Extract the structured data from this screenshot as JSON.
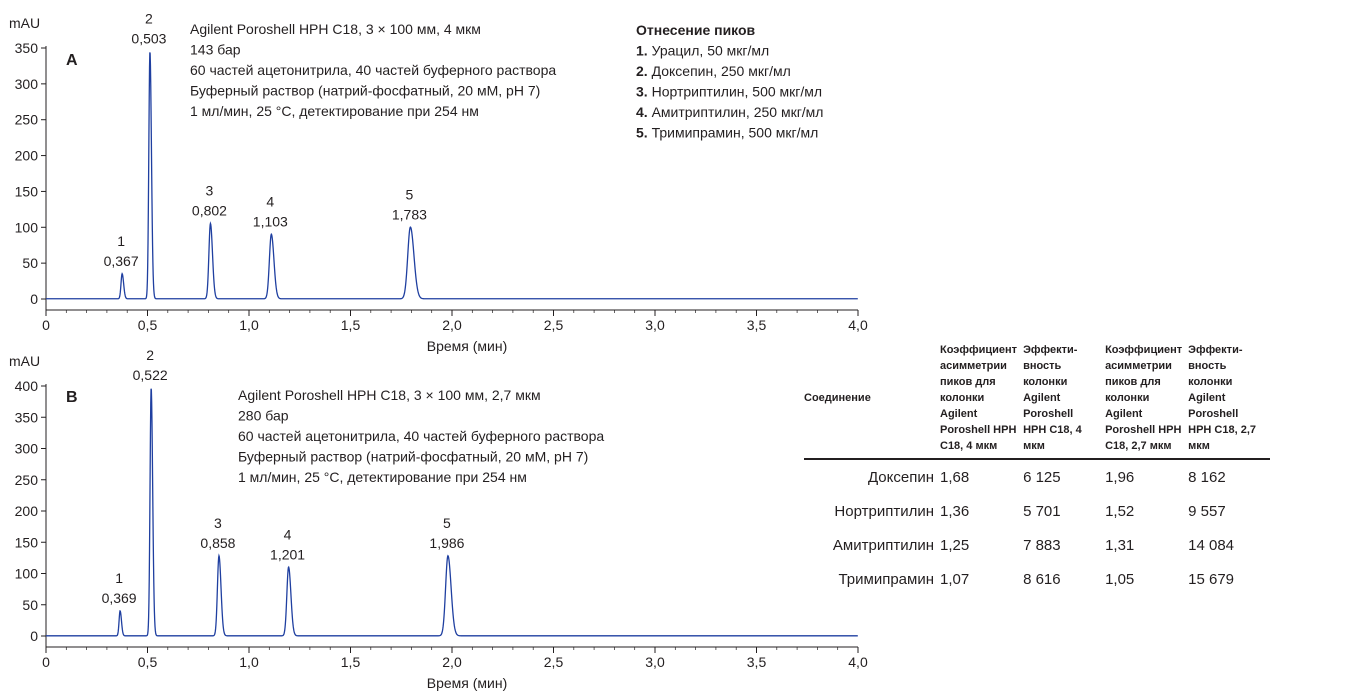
{
  "chart_data": [
    {
      "type": "line",
      "panel": "A",
      "ylabel": "mAU",
      "xlabel": "Время (мин)",
      "xlim": [
        0,
        4.0
      ],
      "ylim": [
        0,
        350
      ],
      "x_ticks": [
        "0",
        "0,5",
        "1,0",
        "1,5",
        "2,0",
        "2,5",
        "3,0",
        "3,5",
        "4,0"
      ],
      "y_ticks": [
        "0",
        "50",
        "100",
        "150",
        "200",
        "250",
        "300",
        "350"
      ],
      "conditions": [
        "Agilent Poroshell HPH C18, 3 × 100 мм, 4 мкм",
        "143 бар",
        "60 частей ацетонитрила, 40 частей буферного раствора",
        "Буферный раствор (натрий-фосфатный, 20 мМ, pH 7)",
        "1 мл/мин, 25 °C, детектирование при 254 нм"
      ],
      "peaks": [
        {
          "id": "1",
          "rt_label": "0,367",
          "rt": 0.375,
          "height": 35,
          "width": 0.0055
        },
        {
          "id": "2",
          "rt_label": "0,503",
          "rt": 0.512,
          "height": 345,
          "width": 0.0055
        },
        {
          "id": "3",
          "rt_label": "0,802",
          "rt": 0.81,
          "height": 105,
          "width": 0.0075
        },
        {
          "id": "4",
          "rt_label": "1,103",
          "rt": 1.11,
          "height": 90,
          "width": 0.0095
        },
        {
          "id": "5",
          "rt_label": "1,783",
          "rt": 1.795,
          "height": 100,
          "width": 0.013
        }
      ],
      "line_color": "#1f3fa0"
    },
    {
      "type": "line",
      "panel": "B",
      "ylabel": "mAU",
      "xlabel": "Время (мин)",
      "xlim": [
        0,
        4.0
      ],
      "ylim": [
        0,
        400
      ],
      "x_ticks": [
        "0",
        "0,5",
        "1,0",
        "1,5",
        "2,0",
        "2,5",
        "3,0",
        "3,5",
        "4,0"
      ],
      "y_ticks": [
        "0",
        "50",
        "100",
        "150",
        "200",
        "250",
        "300",
        "350",
        "400"
      ],
      "conditions": [
        "Agilent Poroshell HPH C18, 3 × 100 мм, 2,7 мкм",
        "280 бар",
        "60 частей ацетонитрила, 40 частей буферного раствора",
        "Буферный раствор (натрий-фосфатный, 20 мМ, pH 7)",
        "1 мл/мин, 25 °C, детектирование при 254 нм"
      ],
      "peaks": [
        {
          "id": "1",
          "rt_label": "0,369",
          "rt": 0.365,
          "height": 40,
          "width": 0.005
        },
        {
          "id": "2",
          "rt_label": "0,522",
          "rt": 0.518,
          "height": 397,
          "width": 0.0055
        },
        {
          "id": "3",
          "rt_label": "0,858",
          "rt": 0.852,
          "height": 128,
          "width": 0.0075
        },
        {
          "id": "4",
          "rt_label": "1,201",
          "rt": 1.195,
          "height": 110,
          "width": 0.0085
        },
        {
          "id": "5",
          "rt_label": "1,986",
          "rt": 1.98,
          "height": 128,
          "width": 0.0115
        }
      ],
      "line_color": "#1f3fa0"
    }
  ],
  "legend": {
    "title": "Отнесение пиков",
    "items": [
      {
        "num": "1.",
        "text": " Урацил, 50 мкг/мл"
      },
      {
        "num": "2.",
        "text": " Доксепин, 250 мкг/мл"
      },
      {
        "num": "3.",
        "text": " Нортриптилин, 500 мкг/мл"
      },
      {
        "num": "4.",
        "text": " Амитриптилин, 250 мкг/мл"
      },
      {
        "num": "5.",
        "text": " Тримипрамин, 500 мкг/мл"
      }
    ]
  },
  "table": {
    "headers": [
      "Соединение",
      "Коэффициент асимметрии пиков для колонки Agilent Poroshell HPH C18, 4 мкм",
      "Эффекти-вность колонки Agilent Poroshell HPH C18, 4 мкм",
      "Коэффициент асимметрии пиков для колонки Agilent Poroshell HPH C18, 2,7 мкм",
      "Эффекти-вность колонки Agilent Poroshell HPH C18, 2,7 мкм"
    ],
    "rows": [
      [
        "Доксепин",
        "1,68",
        "6 125",
        "1,96",
        "8 162"
      ],
      [
        "Нортриптилин",
        "1,36",
        "5 701",
        "1,52",
        "9 557"
      ],
      [
        "Амитриптилин",
        "1,25",
        "7 883",
        "1,31",
        "14 084"
      ],
      [
        "Тримипрамин",
        "1,07",
        "8 616",
        "1,05",
        "15 679"
      ]
    ]
  }
}
